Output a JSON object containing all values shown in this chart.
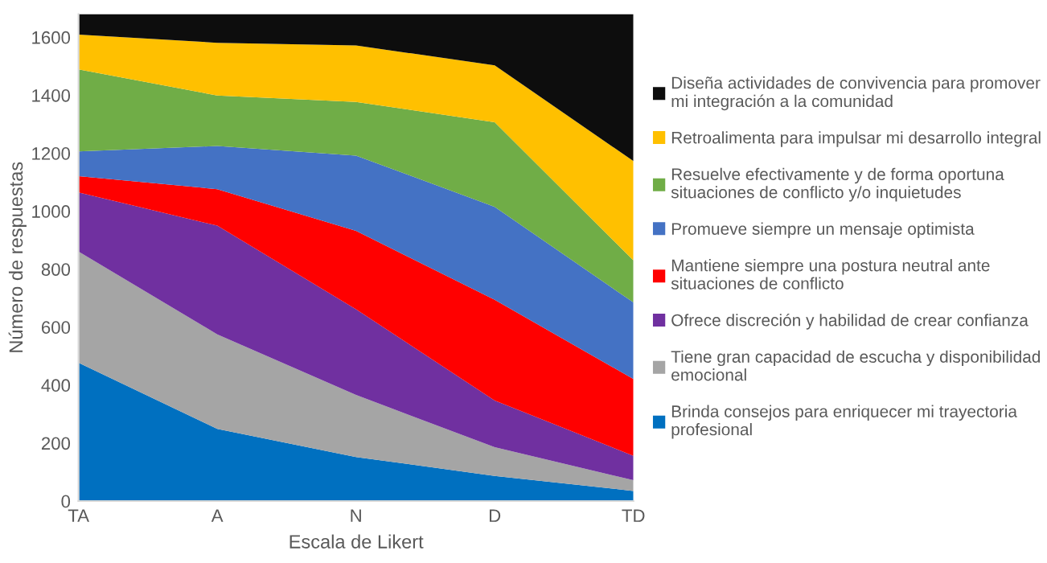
{
  "chart_data": {
    "type": "area",
    "stacked": true,
    "xlabel": "Escala de Likert",
    "ylabel": "Número de respuestas",
    "categories": [
      "TA",
      "A",
      "N",
      "D",
      "TD"
    ],
    "ylim": [
      0,
      1680
    ],
    "yticks": [
      0,
      200,
      400,
      600,
      800,
      1000,
      1200,
      1400,
      1600
    ],
    "grid": false,
    "legend": "right",
    "series": [
      {
        "name": "Brinda consejos para enriquecer mi trayectoria\nprofesional",
        "color": "#0070c0",
        "values": [
          477,
          249,
          152,
          87,
          35
        ]
      },
      {
        "name": "Tiene gran capacidad de escucha y disponibilidad\nemocional",
        "color": "#a5a5a5",
        "values": [
          384,
          326,
          214,
          99,
          37
        ]
      },
      {
        "name": "Ofrece discreción y habilidad de crear confianza",
        "color": "#7030a0",
        "values": [
          204,
          375,
          296,
          161,
          84
        ]
      },
      {
        "name": "Mantiene siempre una postura neutral ante\nsituaciones de conflicto",
        "color": "#ff0000",
        "values": [
          56,
          126,
          270,
          347,
          265
        ]
      },
      {
        "name": "Promueve siempre un mensaje optimista",
        "color": "#4472c4",
        "values": [
          85,
          149,
          260,
          321,
          264
        ]
      },
      {
        "name": "Resuelve efectivamente y de forma oportuna\nsituaciones de conflicto y/o inquietudes",
        "color": "#70ad47",
        "values": [
          283,
          174,
          185,
          292,
          145
        ]
      },
      {
        "name": "Retroalimenta para impulsar mi desarrollo integral",
        "color": "#ffc000",
        "values": [
          120,
          182,
          195,
          196,
          343
        ]
      },
      {
        "name": "Diseña actividades de convivencia para promover\nmi integración a la comunidad",
        "color": "#0d0d0d",
        "values": [
          71,
          99,
          108,
          177,
          507
        ]
      }
    ]
  }
}
